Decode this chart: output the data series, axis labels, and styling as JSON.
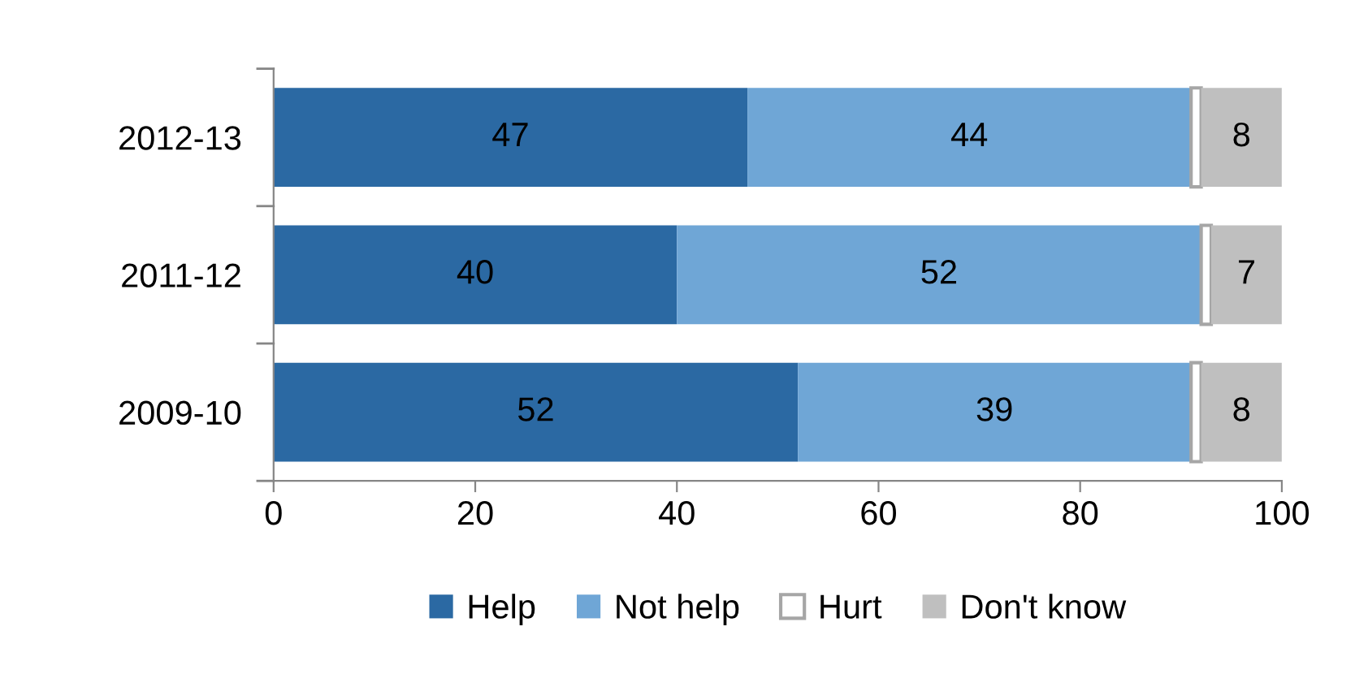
{
  "chart_data": {
    "type": "bar",
    "orientation": "horizontal",
    "stacked": true,
    "categories": [
      "2012-13",
      "2011-12",
      "2009-10"
    ],
    "series": [
      {
        "name": "Help",
        "color": "#2b69a3",
        "values": [
          47,
          40,
          52
        ],
        "value_labels": [
          "47",
          "40",
          "52"
        ]
      },
      {
        "name": "Not help",
        "color": "#6fa6d6",
        "values": [
          44,
          52,
          39
        ],
        "value_labels": [
          "44",
          "52",
          "39"
        ]
      },
      {
        "name": "Hurt",
        "color": "#ffffff",
        "values": [
          1,
          1,
          1
        ],
        "value_labels": [
          null,
          null,
          null
        ]
      },
      {
        "name": "Don't know",
        "color": "#bfbfbf",
        "values": [
          8,
          7,
          8
        ],
        "value_labels": [
          "8",
          "7",
          "8"
        ]
      }
    ],
    "xlim": [
      0,
      100
    ],
    "xticks": [
      0,
      20,
      40,
      60,
      80,
      100
    ],
    "grid": false,
    "legend": "bottom"
  }
}
